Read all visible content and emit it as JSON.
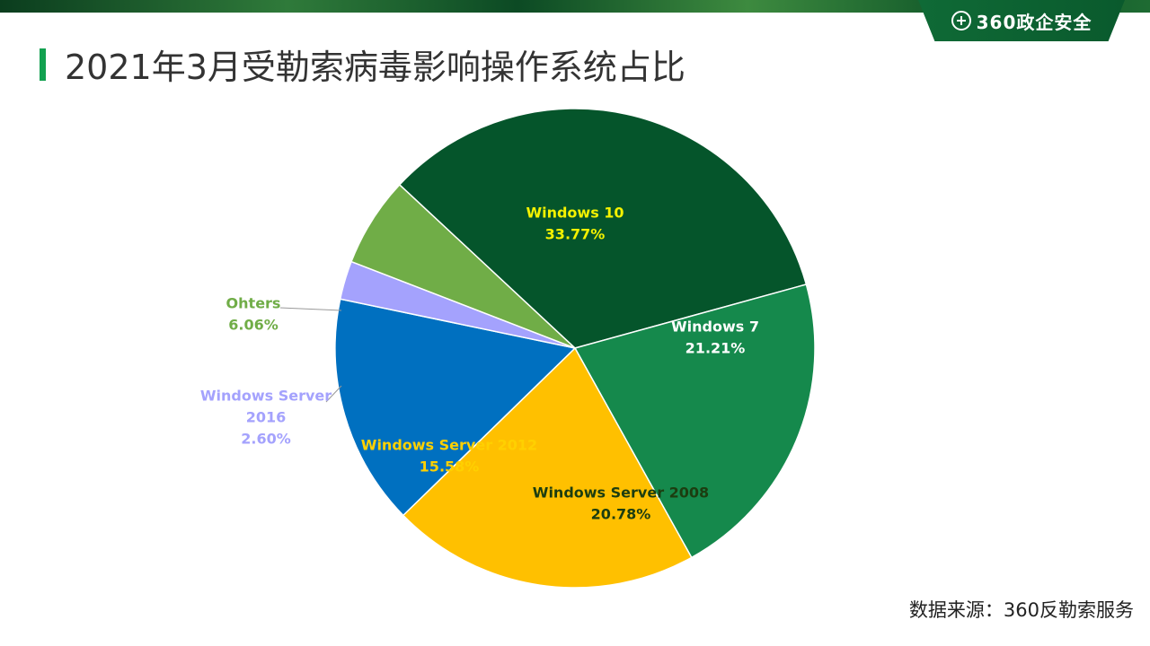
{
  "header": {
    "brand": "360政企安全",
    "title": "2021年3月受勒索病毒影响操作系统占比"
  },
  "footer": {
    "source": "数据来源：360反勒索服务"
  },
  "chart_data": {
    "type": "pie",
    "title": "2021年3月受勒索病毒影响操作系统占比",
    "slices": [
      {
        "name": "Windows 10",
        "value": 33.77,
        "value_label": "33.77%",
        "color": "#05552b",
        "label_color": "#f5f200"
      },
      {
        "name": "Windows 7",
        "value": 21.21,
        "value_label": "21.21%",
        "color": "#15894c",
        "label_color": "#ffffff"
      },
      {
        "name": "Windows Server 2008",
        "value": 20.78,
        "value_label": "20.78%",
        "color": "#ffc000",
        "label_color": "#1c3d10"
      },
      {
        "name": "Windows Server 2012",
        "value": 15.58,
        "value_label": "15.58%",
        "color": "#0070c0",
        "label_color": "#ffd000"
      },
      {
        "name": "Windows Server 2016",
        "value": 2.6,
        "value_label": "2.60%",
        "color": "#a4a2fd",
        "label_color": "#a4a2fd"
      },
      {
        "name": "Ohters",
        "value": 6.06,
        "value_label": "6.06%",
        "color": "#70ad47",
        "label_color": "#70ad47"
      }
    ]
  }
}
